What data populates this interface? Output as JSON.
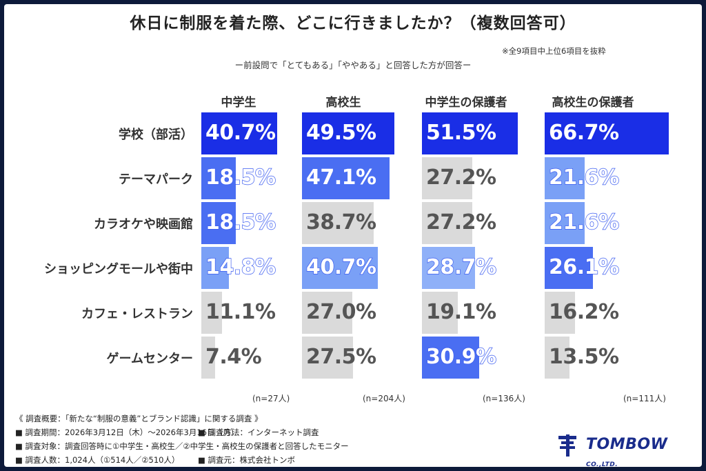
{
  "title": "休日に制服を着た際、どこに行きましたか？（複数回答可）",
  "note_top": "※全9項目中上位6項目を抜粋",
  "subtitle": "ー前設問で「とてもある」「ややある」と回答した方が回答ー",
  "chart_data": {
    "type": "bar",
    "orientation": "horizontal",
    "unit": "%",
    "categories": [
      "学校（部活）",
      "テーマパーク",
      "カラオケや映画館",
      "ショッピングモールや街中",
      "カフェ・レストラン",
      "ゲームセンター"
    ],
    "series": [
      {
        "name": "中学生",
        "n_label": "(n=27人)",
        "values": [
          40.7,
          18.5,
          18.5,
          14.8,
          11.1,
          7.4
        ],
        "value_labels": [
          "40.7%",
          "18.5%",
          "18.5%",
          "14.8%",
          "11.1%",
          "7.4%"
        ]
      },
      {
        "name": "高校生",
        "n_label": "(n=204人)",
        "values": [
          49.5,
          47.1,
          38.7,
          40.7,
          27.0,
          27.5
        ],
        "value_labels": [
          "49.5%",
          "47.1%",
          "38.7%",
          "40.7%",
          "27.0%",
          "27.5%"
        ]
      },
      {
        "name": "中学生の保護者",
        "n_label": "(n=136人)",
        "values": [
          51.5,
          27.2,
          27.2,
          28.7,
          19.1,
          30.9
        ],
        "value_labels": [
          "51.5%",
          "27.2%",
          "27.2%",
          "28.7%",
          "19.1%",
          "30.9%"
        ]
      },
      {
        "name": "高校生の保護者",
        "n_label": "(n=111人)",
        "values": [
          66.7,
          21.6,
          21.6,
          26.1,
          16.2,
          13.5
        ],
        "value_labels": [
          "66.7%",
          "21.6%",
          "21.6%",
          "26.1%",
          "16.2%",
          "13.5%"
        ]
      }
    ],
    "highlight_tiers": [
      [
        "top1",
        "top2",
        "top2",
        "top3",
        "none",
        "none"
      ],
      [
        "top1",
        "top2",
        "none",
        "top3",
        "none",
        "none"
      ],
      [
        "top1",
        "none",
        "none",
        "top4",
        "none",
        "top2"
      ],
      [
        "top1",
        "top3",
        "top3",
        "top2",
        "none",
        "none"
      ]
    ],
    "colors": {
      "top1": "#1a2ee6",
      "top2": "#4a6ef2",
      "top3": "#7aa0f6",
      "top4": "#8fb0f8",
      "none": "#dadada"
    }
  },
  "footer": {
    "summary": "《 調査概要：「新たな“制服の意義”とブランド認識」に関する調査 》",
    "period": "■ 調査期間：2026年3月12日（木）〜2026年3月16日（月）",
    "method": "■ 調査方法：インターネット調査",
    "target": "■ 調査対象：調査回答時に①中学生・高校生／②中学生・高校生の保護者と回答したモニター",
    "count": "■ 調査人数：1,024人（①514人／②510人）",
    "source": "■ 調査元：株式会社トンボ"
  },
  "logo": {
    "text": "TOMBOW",
    "sub": "CO.,LTD."
  }
}
